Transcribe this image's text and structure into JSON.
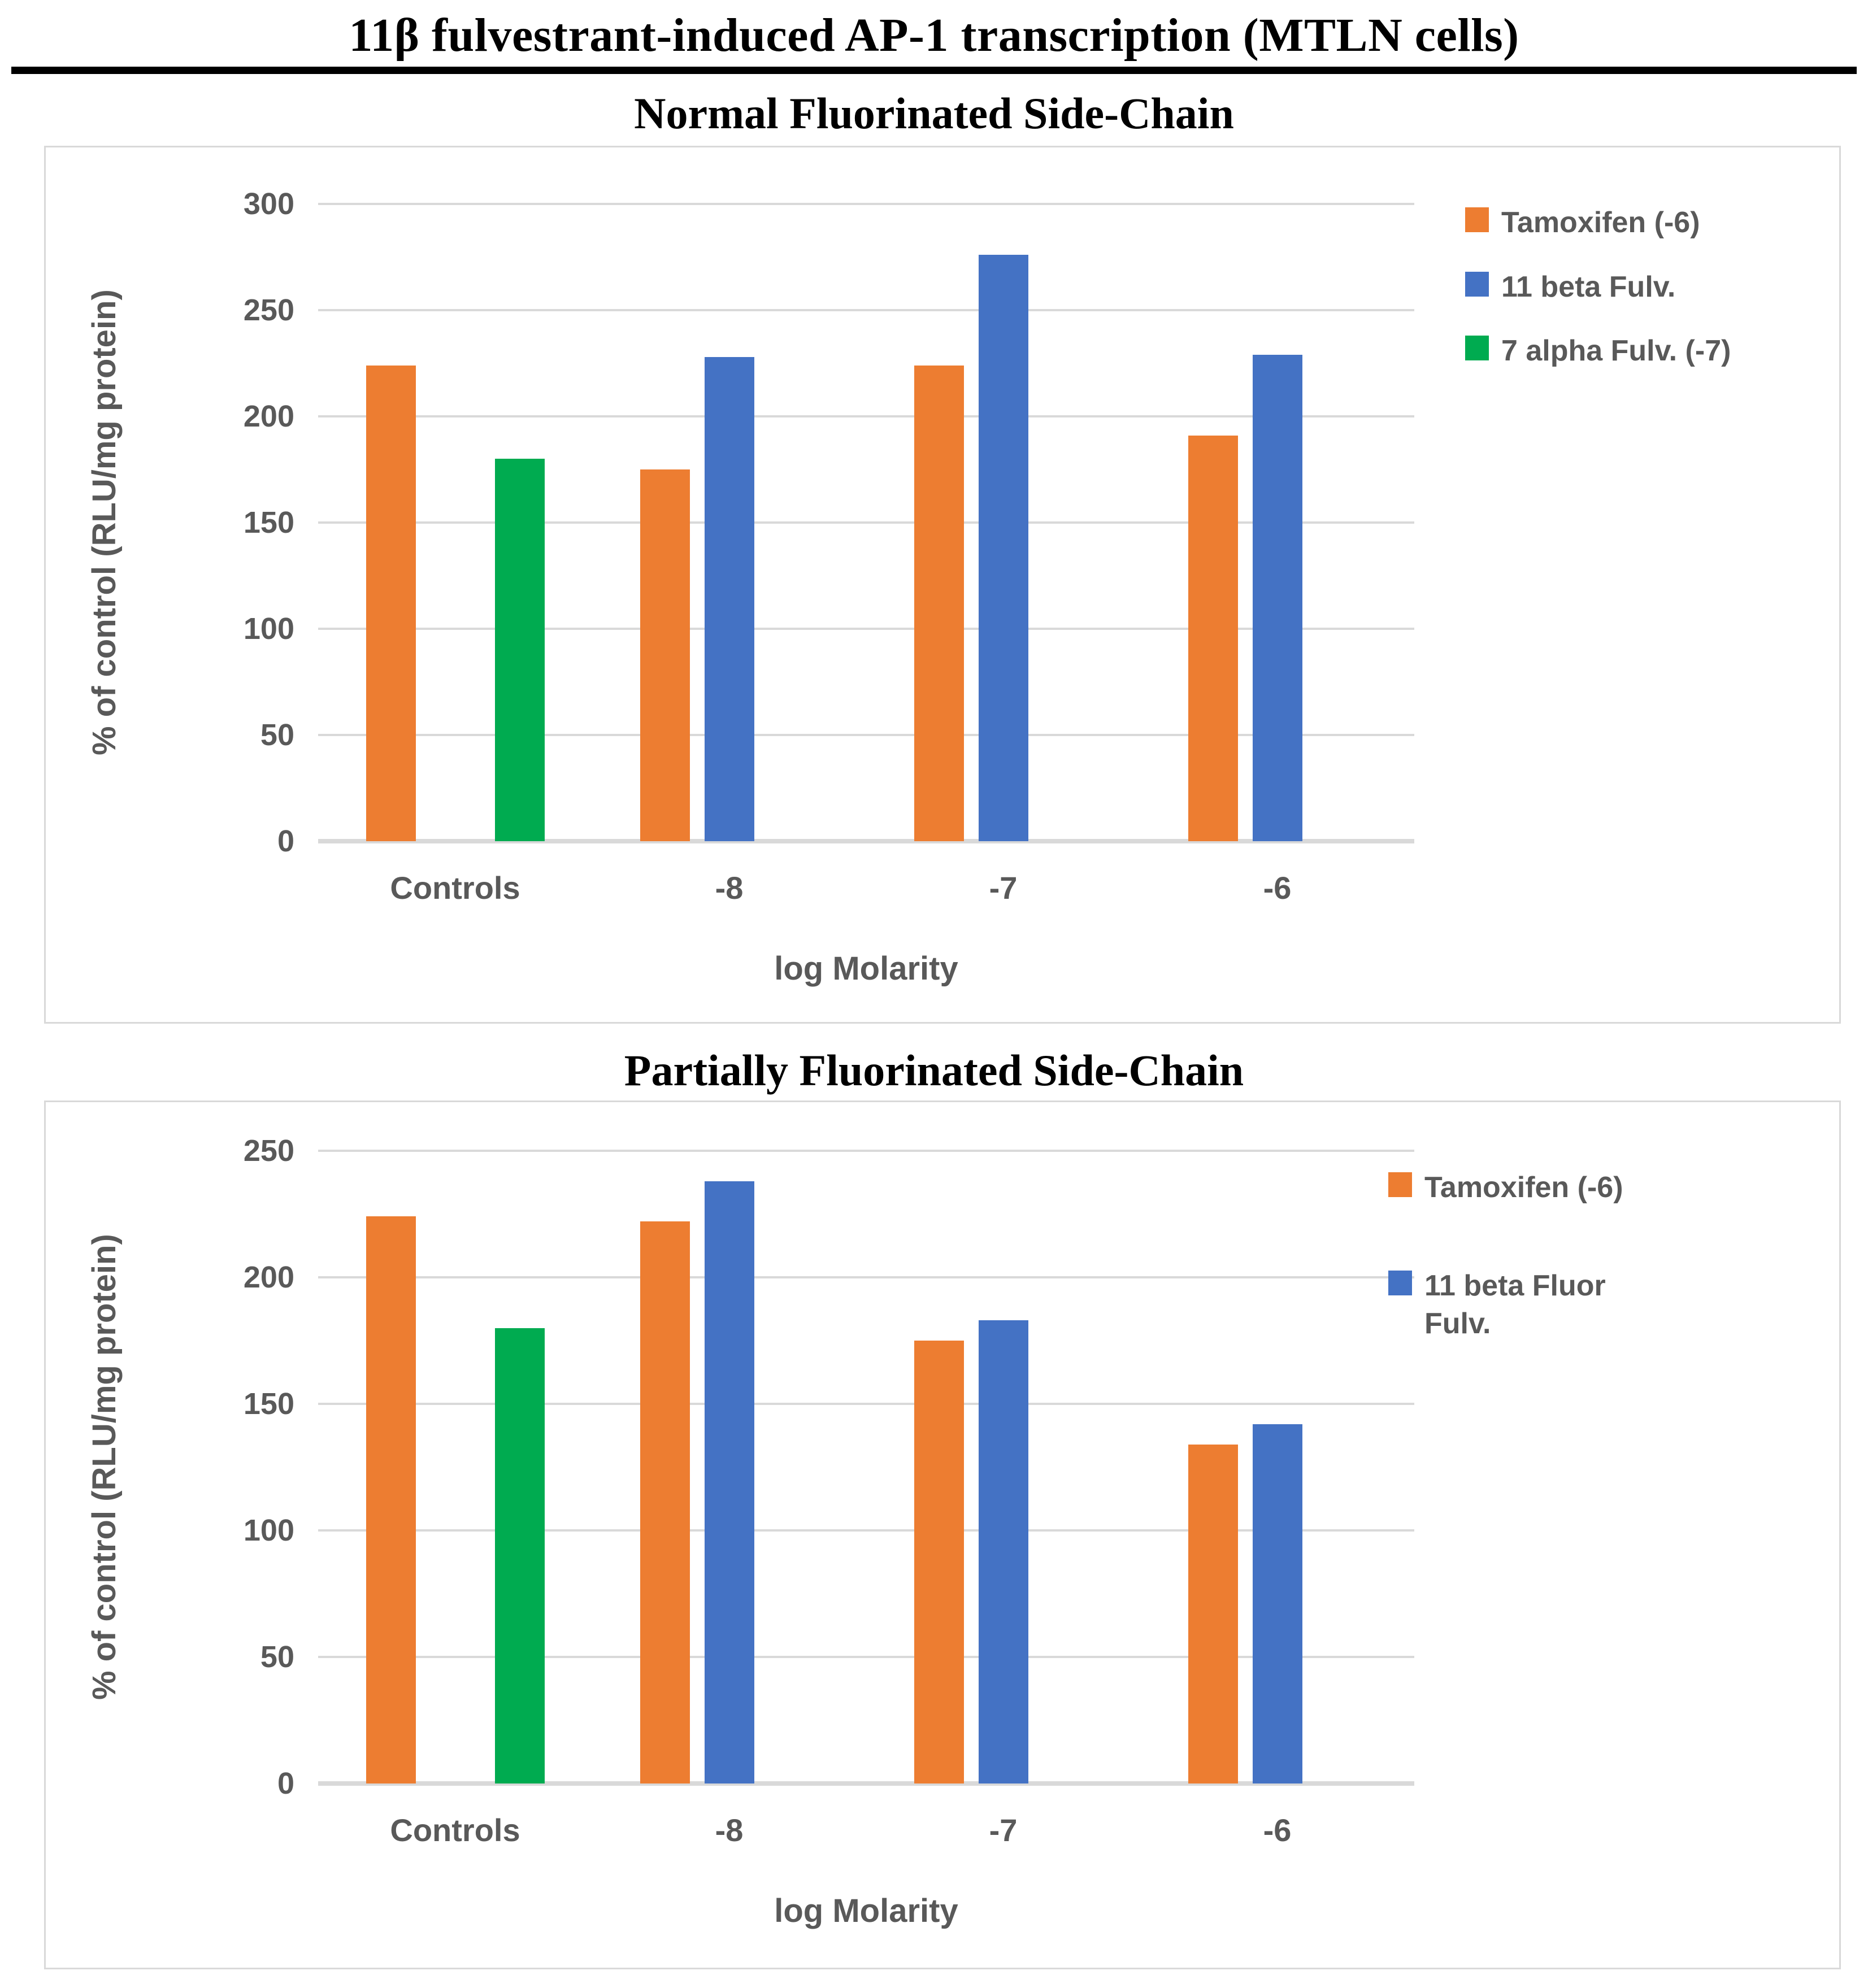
{
  "page": {
    "main_title": "11β fulvestrant-induced AP-1 transcription (MTLN cells)"
  },
  "colors": {
    "orange": "#ED7D31",
    "blue": "#4472C4",
    "green": "#00AB50",
    "gridline": "#D9D9D9",
    "axis_text": "#595959",
    "chart_border": "#D9D9D9",
    "title_text": "#000000"
  },
  "chart_data": [
    {
      "type": "bar",
      "title": "Normal Fluorinated Side-Chain",
      "ylabel": "% of control (RLU/mg protein)",
      "xlabel": "log Molarity",
      "ylim": [
        0,
        300
      ],
      "ytick_step": 50,
      "yticks": [
        "0",
        "50",
        "100",
        "150",
        "200",
        "250",
        "300"
      ],
      "grid": true,
      "legend_position": "right",
      "categories": [
        "Controls",
        "-8",
        "-7",
        "-6"
      ],
      "legend": [
        "Tamoxifen (-6)",
        "11 beta Fulv.",
        "7 alpha Fulv. (-7)"
      ],
      "series": [
        {
          "key": "tamoxifen",
          "name": "Tamoxifen (-6)",
          "color": "orange",
          "values": [
            224,
            175,
            224,
            191
          ]
        },
        {
          "key": "beta-fulv",
          "name": "11 beta Fulv.",
          "color": "blue",
          "values": [
            null,
            228,
            276,
            229
          ]
        },
        {
          "key": "alpha-fulv",
          "name": "7 alpha Fulv. (-7)",
          "color": "green",
          "values": [
            180,
            null,
            null,
            null
          ]
        }
      ]
    },
    {
      "type": "bar",
      "title": "Partially Fluorinated Side-Chain",
      "ylabel": "% of control (RLU/mg protein)",
      "xlabel": "log Molarity",
      "ylim": [
        0,
        250
      ],
      "ytick_step": 50,
      "yticks": [
        "0",
        "50",
        "100",
        "150",
        "200",
        "250"
      ],
      "grid": true,
      "legend_position": "right",
      "categories": [
        "Controls",
        "-8",
        "-7",
        "-6"
      ],
      "legend": [
        "Tamoxifen (-6)",
        "11 beta Fluor Fulv."
      ],
      "series": [
        {
          "key": "tamoxifen",
          "name": "Tamoxifen (-6)",
          "color": "orange",
          "values": [
            224,
            222,
            175,
            134
          ]
        },
        {
          "key": "beta-fluor-fulv",
          "name": "11 beta Fluor Fulv.",
          "color": "blue",
          "values": [
            null,
            238,
            183,
            142
          ]
        },
        {
          "key": "control-green",
          "name": "",
          "color": "green",
          "values": [
            180,
            null,
            null,
            null
          ]
        }
      ]
    }
  ]
}
